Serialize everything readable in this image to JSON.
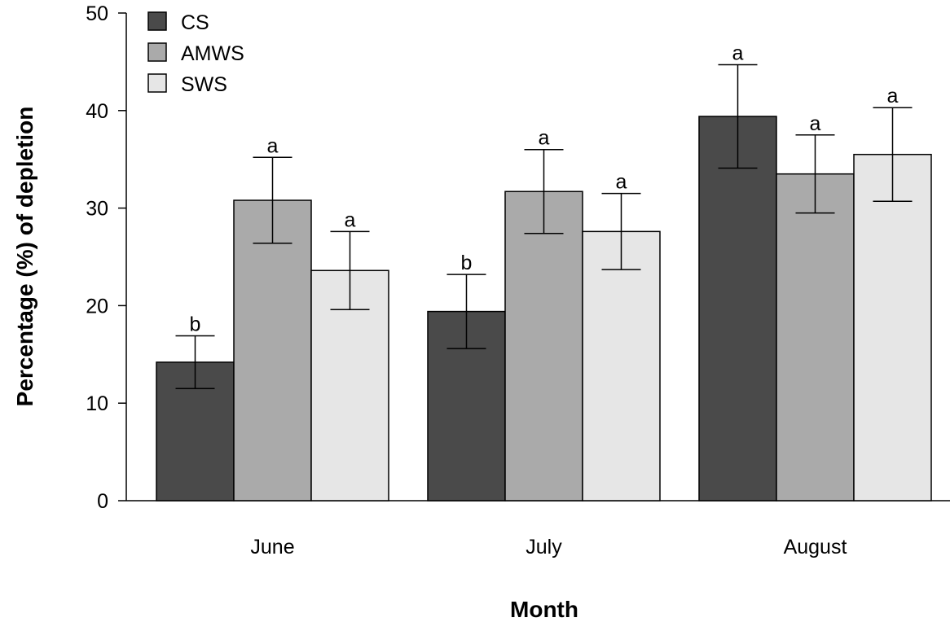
{
  "chart_data": {
    "type": "bar",
    "title": "",
    "xlabel": "Month",
    "ylabel": "Percentage (%) of depletion",
    "categories": [
      "June",
      "July",
      "August"
    ],
    "ylim": [
      0,
      50
    ],
    "yticks": [
      0,
      10,
      20,
      30,
      40,
      50
    ],
    "legend_position": "top-left",
    "grid": false,
    "series": [
      {
        "name": "CS",
        "color": "#4a4a4a",
        "values": [
          14.2,
          19.4,
          39.4
        ],
        "error": [
          2.7,
          3.8,
          5.3
        ],
        "labels": [
          "b",
          "b",
          "a"
        ]
      },
      {
        "name": "AMWS",
        "color": "#aaaaaa",
        "values": [
          30.8,
          31.7,
          33.5
        ],
        "error": [
          4.4,
          4.3,
          4.0
        ],
        "labels": [
          "a",
          "a",
          "a"
        ]
      },
      {
        "name": "SWS",
        "color": "#e6e6e6",
        "values": [
          23.6,
          27.6,
          35.5
        ],
        "error": [
          4.0,
          3.9,
          4.8
        ],
        "labels": [
          "a",
          "a",
          "a"
        ]
      }
    ]
  }
}
